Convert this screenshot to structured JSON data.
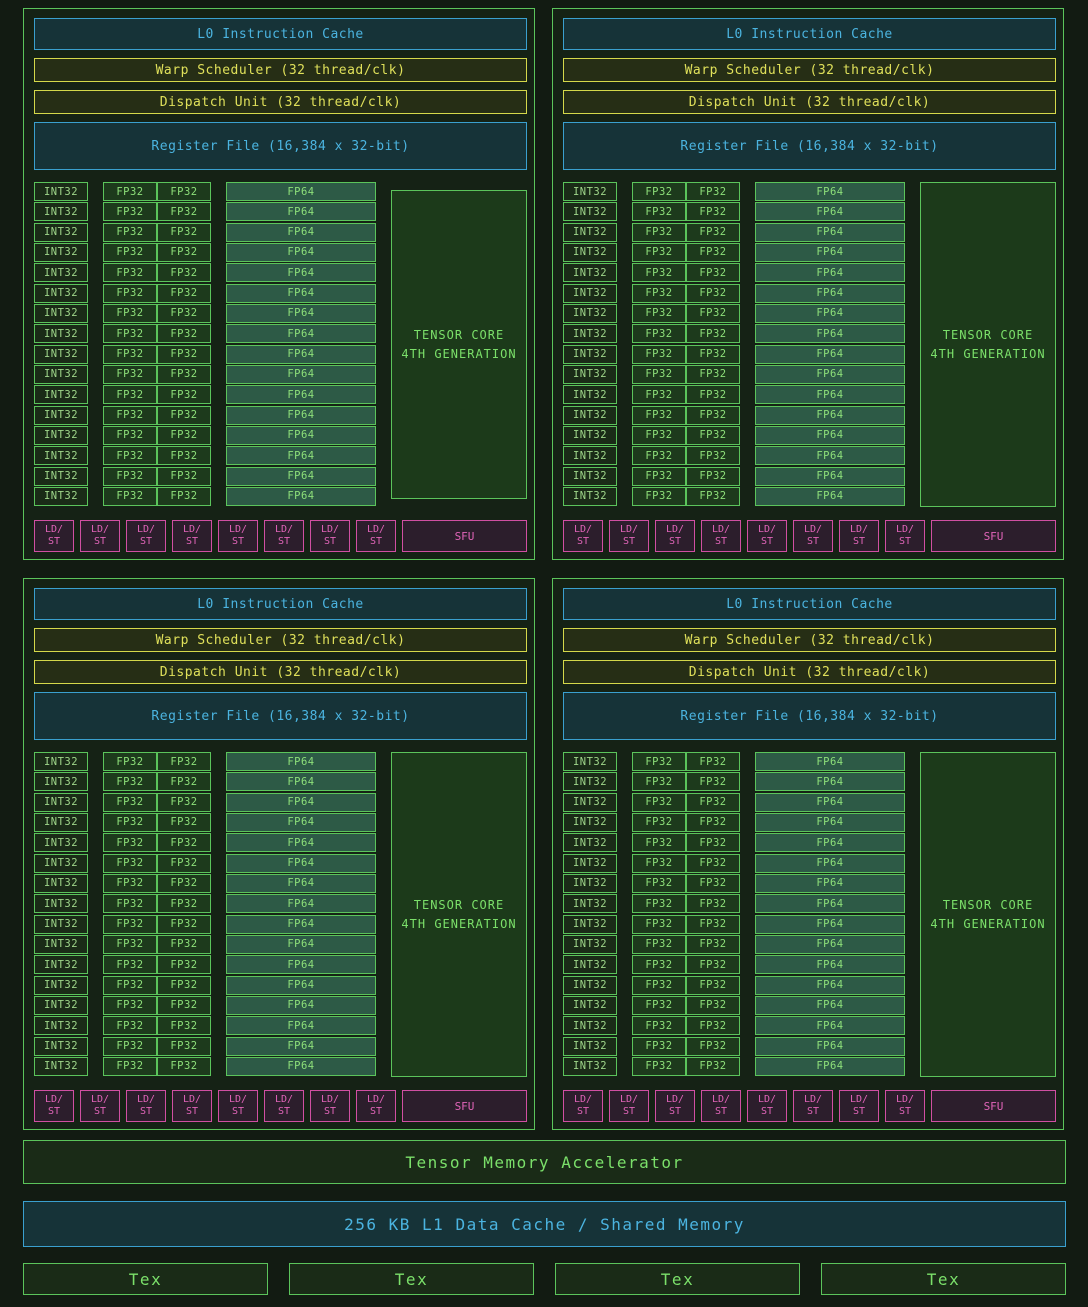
{
  "sm_block": {
    "instruction_cache": "L0 Instruction Cache",
    "warp_scheduler": "Warp Scheduler (32 thread/clk)",
    "dispatch_unit": "Dispatch Unit (32 thread/clk)",
    "register_file": "Register File (16,384 x 32-bit)",
    "int32_label": "INT32",
    "fp32_label": "FP32",
    "fp64_label": "FP64",
    "units_per_column": 16,
    "tensor_core_line1": "TENSOR CORE",
    "tensor_core_line2": "4TH GENERATION",
    "ldst_line1": "LD/",
    "ldst_line2": "ST",
    "ldst_count": 8,
    "sfu": "SFU"
  },
  "sm_block_count": 4,
  "tensor_memory_accelerator": "Tensor Memory Accelerator",
  "l1_cache": "256 KB L1 Data Cache / Shared Memory",
  "tex_units": [
    "Tex",
    "Tex",
    "Tex",
    "Tex"
  ],
  "colors": {
    "background": "#121b12",
    "green_border": "#5bc45b",
    "blue": "#4bb4e0",
    "yellow": "#dfe05a",
    "magenta": "#e064b8"
  }
}
